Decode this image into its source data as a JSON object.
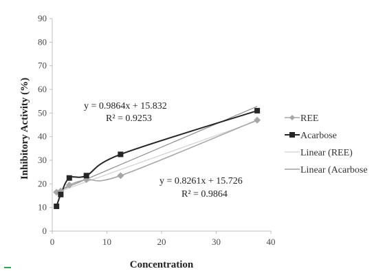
{
  "chart_data": {
    "type": "line",
    "xlabel": "Concentration",
    "ylabel": "Inhibitory Activity (%)",
    "xlim": [
      0,
      40
    ],
    "ylim": [
      0,
      90
    ],
    "x_ticks": [
      0,
      10,
      20,
      30,
      40
    ],
    "y_ticks": [
      0,
      10,
      20,
      30,
      40,
      50,
      60,
      70,
      80,
      90
    ],
    "grid": false,
    "legend_position": "right",
    "series": [
      {
        "name": "REE",
        "marker": "diamond",
        "color": "#a6a6a6",
        "x": [
          0.78,
          1.56,
          3.12,
          6.25,
          12.5,
          37.5
        ],
        "y": [
          16.5,
          17.0,
          19.5,
          21.8,
          23.5,
          47.0
        ]
      },
      {
        "name": "Acarbose",
        "marker": "square",
        "color": "#262626",
        "x": [
          0.78,
          1.56,
          3.12,
          6.25,
          12.5,
          37.5
        ],
        "y": [
          10.5,
          15.5,
          22.5,
          23.5,
          32.5,
          51.0
        ]
      }
    ],
    "trendlines": [
      {
        "name": "Linear (REE)",
        "color": "#cfcfcf",
        "slope": 0.8261,
        "intercept": 15.726,
        "equation": "y = 0.8261x + 15.726",
        "r2": "R² = 0.9864"
      },
      {
        "name": "Linear (Acarbose",
        "color": "#8c8c8c",
        "slope": 0.9864,
        "intercept": 15.832,
        "equation": "y = 0.9864x + 15.832",
        "r2": "R² = 0.9253"
      }
    ]
  }
}
